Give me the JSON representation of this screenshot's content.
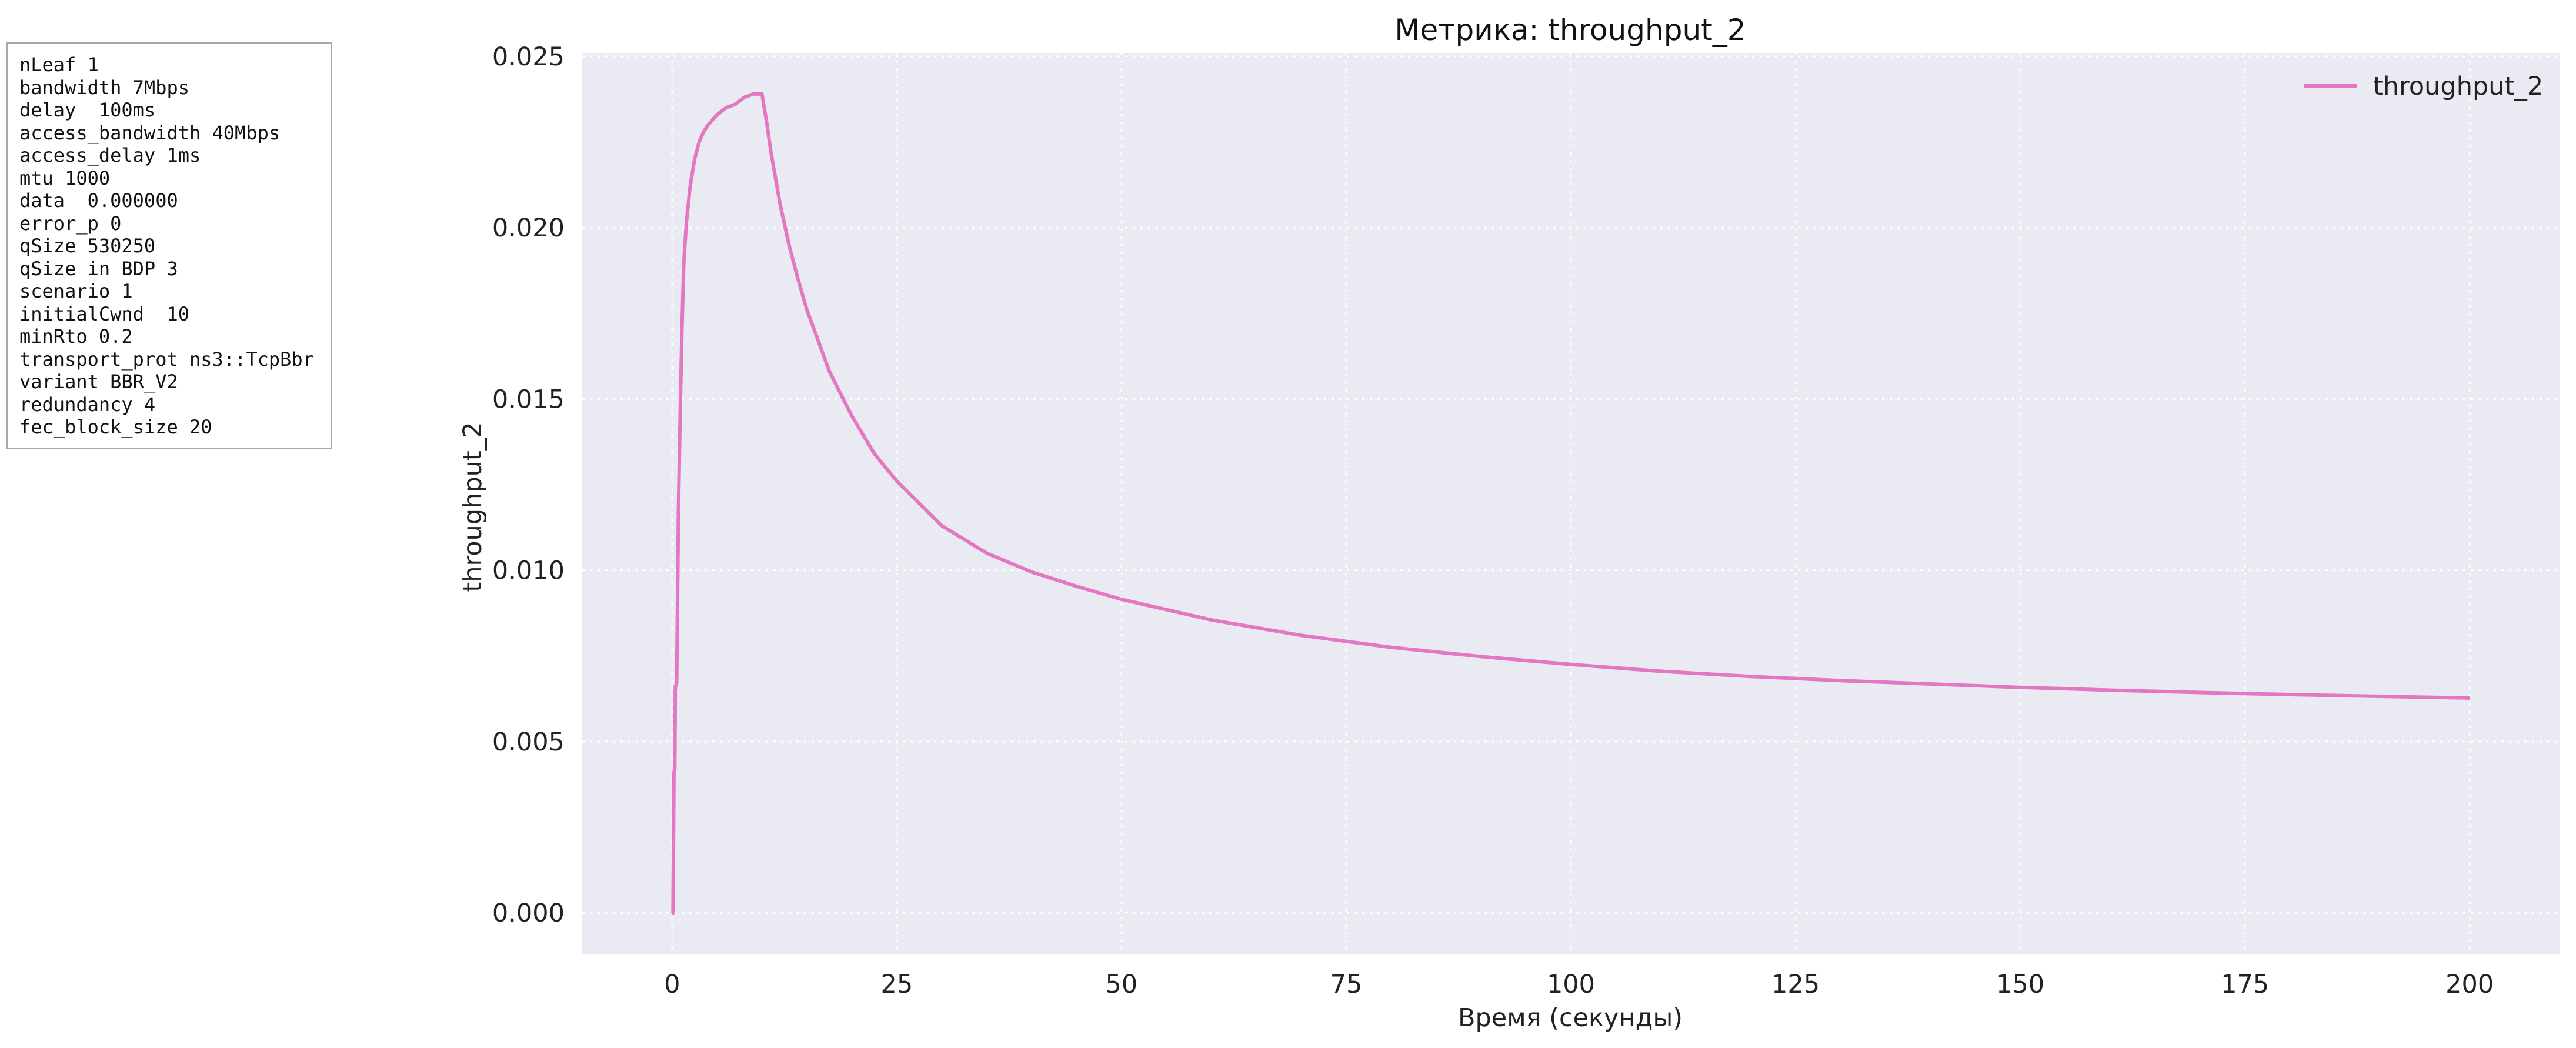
{
  "params": [
    "nLeaf 1",
    "bandwidth 7Mbps",
    "delay  100ms",
    "access_bandwidth 40Mbps",
    "access_delay 1ms",
    "mtu 1000",
    "data  0.000000",
    "error_p 0",
    "qSize 530250",
    "qSize in BDP 3",
    "scenario 1",
    "initialCwnd  10",
    "minRto 0.2",
    "transport_prot ns3::TcpBbr",
    "variant BBR_V2",
    "redundancy 4",
    "fec_block_size 20"
  ],
  "chart_data": {
    "type": "line",
    "title": "Метрика: throughput_2",
    "xlabel": "Время (секунды)",
    "ylabel": "throughput_2",
    "xlim": [
      -10,
      210
    ],
    "ylim": [
      -0.0012,
      0.0251
    ],
    "xticks": [
      0,
      25,
      50,
      75,
      100,
      125,
      150,
      175,
      200
    ],
    "yticks": [
      0.0,
      0.005,
      0.01,
      0.015,
      0.02,
      0.025
    ],
    "ytick_labels": [
      "0.000",
      "0.005",
      "0.010",
      "0.015",
      "0.020",
      "0.025"
    ],
    "grid": true,
    "legend_position": "top-right",
    "colors": {
      "series": "#e377c2",
      "plot_background": "#eaeaf2",
      "grid": "#ffffff"
    },
    "series": [
      {
        "name": "throughput_2",
        "x": [
          0.0,
          0.1,
          0.2,
          0.3,
          0.35,
          0.5,
          0.7,
          0.9,
          1.1,
          1.3,
          1.6,
          2.0,
          2.5,
          3.0,
          3.5,
          4.0,
          5.0,
          6.0,
          7.0,
          8.0,
          9.0,
          10.0,
          10.5,
          11.0,
          12.0,
          13.0,
          14.0,
          15.0,
          17.5,
          20.0,
          22.5,
          25.0,
          30.0,
          35.0,
          40.0,
          45.0,
          50.0,
          60.0,
          70.0,
          80.0,
          90.0,
          100.0,
          110.0,
          120.0,
          130.0,
          140.0,
          150.0,
          160.0,
          170.0,
          180.0,
          190.0,
          200.0
        ],
        "y": [
          0.0,
          0.0,
          0.0041,
          0.0042,
          0.0066,
          0.0067,
          0.0117,
          0.0147,
          0.0171,
          0.019,
          0.0202,
          0.0212,
          0.022,
          0.0225,
          0.0228,
          0.023,
          0.0233,
          0.0235,
          0.0236,
          0.0238,
          0.0239,
          0.0239,
          0.0231,
          0.0222,
          0.0207,
          0.0195,
          0.0185,
          0.0176,
          0.0158,
          0.0145,
          0.0134,
          0.0126,
          0.0113,
          0.0105,
          0.00995,
          0.00953,
          0.00915,
          0.00855,
          0.0081,
          0.00775,
          0.00748,
          0.00725,
          0.00705,
          0.0069,
          0.00678,
          0.00668,
          0.00658,
          0.0065,
          0.00643,
          0.00637,
          0.00632,
          0.00627
        ]
      }
    ]
  }
}
